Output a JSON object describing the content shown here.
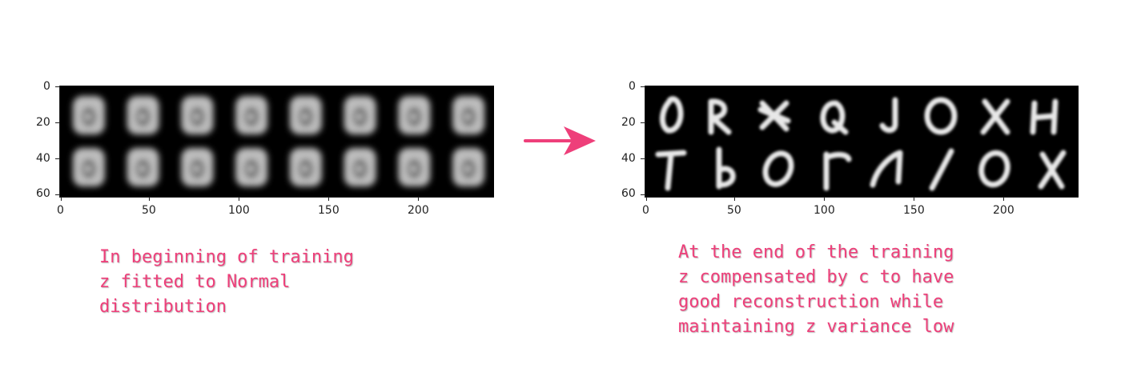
{
  "left_plot": {
    "y_ticks": [
      "0",
      "20",
      "40",
      "60"
    ],
    "x_ticks": [
      "0",
      "50",
      "100",
      "150",
      "200"
    ],
    "caption_lines": [
      "In beginning of training",
      "z fitted to Normal",
      "distribution"
    ]
  },
  "right_plot": {
    "y_ticks": [
      "0",
      "20",
      "40",
      "60"
    ],
    "x_ticks": [
      "0",
      "50",
      "100",
      "150",
      "200"
    ],
    "caption_lines": [
      "At the end of the training",
      "z compensated by c to have",
      "good reconstruction while",
      "maintaining z variance low"
    ]
  },
  "colors": {
    "accent": "#ee3f7a",
    "background": "#000000"
  }
}
